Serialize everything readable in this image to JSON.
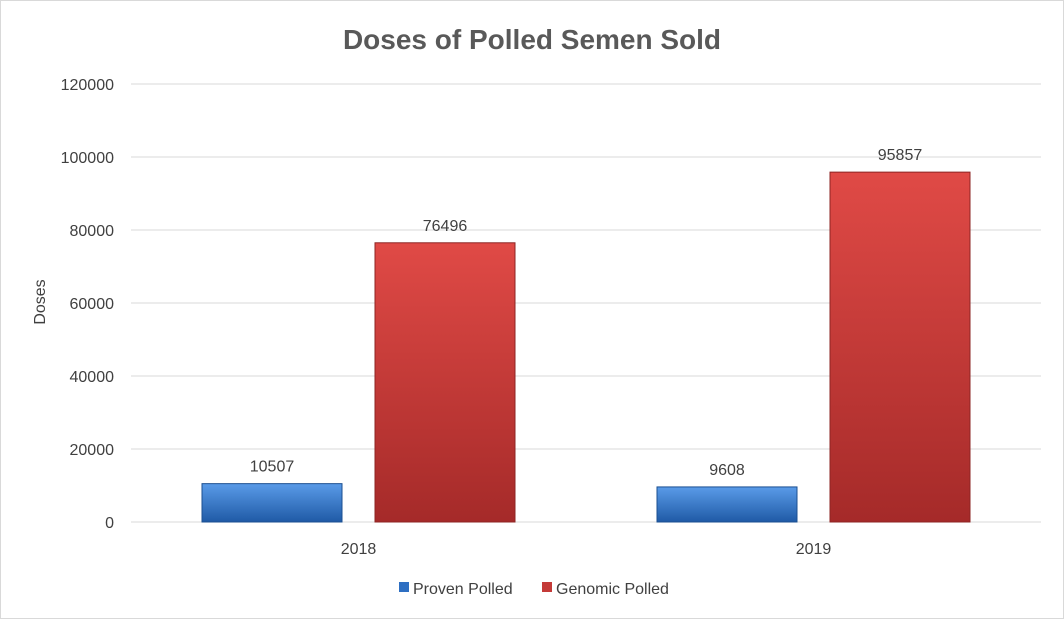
{
  "chart_data": {
    "type": "bar",
    "title": "Doses of Polled Semen Sold",
    "xlabel": "",
    "ylabel": "Doses",
    "categories": [
      "2018",
      "2019"
    ],
    "series": [
      {
        "name": "Proven Polled",
        "values": [
          10507,
          9608
        ],
        "color": "#2e6fc2"
      },
      {
        "name": "Genomic Polled",
        "values": [
          76496,
          95857
        ],
        "color": "#c43a38"
      }
    ],
    "ylim": [
      0,
      120000
    ],
    "yticks": [
      "0",
      "20000",
      "40000",
      "60000",
      "80000",
      "100000",
      "120000"
    ],
    "grid": true,
    "legend_position": "bottom",
    "gridline_color": "#d9d9d9"
  }
}
